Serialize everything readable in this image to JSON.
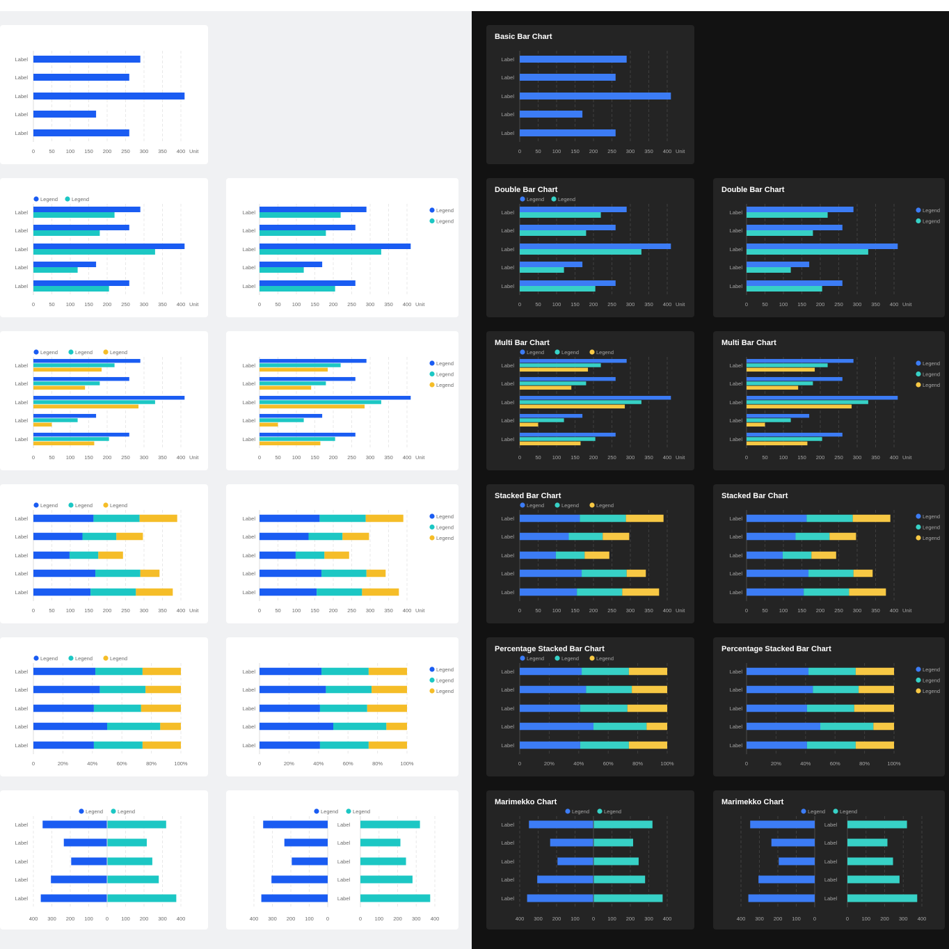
{
  "titles": {
    "basic": "Basic Bar Chart",
    "double": "Double Bar Chart",
    "multi": "Multi Bar Chart",
    "stacked": "Stacked Bar Chart",
    "percent": "Percentage Stacked Bar Chart",
    "marimekko": "Marimekko Chart"
  },
  "colors": {
    "light_page": "#f0f1f3",
    "dark_page": "#121212",
    "light_card": "#ffffff",
    "dark_card": "#242424",
    "blue_light": "#1a5cf2",
    "blue_dark": "#3c7cf5",
    "teal_light": "#1cc7c4",
    "teal_dark": "#37d1c6",
    "yellow_light": "#f5bd28",
    "yellow_dark": "#f7c844",
    "label_light": "#6b6b6b",
    "label_dark": "#a6a6a6",
    "title_dark": "#ffffff"
  },
  "legend_label": "Legend",
  "category_label": "Label",
  "unit_label": "Unit",
  "chart_data": [
    {
      "id": "basic",
      "type": "bar",
      "orientation": "horizontal",
      "layout": "grouped",
      "categories": [
        "Label",
        "Label",
        "Label",
        "Label",
        "Label"
      ],
      "series": [
        {
          "values": [
            290,
            260,
            410,
            170,
            260
          ]
        }
      ],
      "xlim": [
        0,
        400
      ],
      "xticks": [
        "0",
        "50",
        "100",
        "150",
        "200",
        "250",
        "300",
        "350",
        "400"
      ],
      "unit": "Unit",
      "legend": "none",
      "grid": true
    },
    {
      "id": "double",
      "type": "bar",
      "orientation": "horizontal",
      "layout": "grouped",
      "categories": [
        "Label",
        "Label",
        "Label",
        "Label",
        "Label"
      ],
      "series": [
        {
          "name": "Legend",
          "values": [
            290,
            260,
            410,
            170,
            260
          ]
        },
        {
          "name": "Legend",
          "values": [
            220,
            180,
            330,
            120,
            205
          ]
        }
      ],
      "xlim": [
        0,
        400
      ],
      "xticks": [
        "0",
        "50",
        "100",
        "150",
        "200",
        "250",
        "300",
        "350",
        "400"
      ],
      "unit": "Unit",
      "legend": "top",
      "legend_alt": "right",
      "grid": true
    },
    {
      "id": "multi",
      "type": "bar",
      "orientation": "horizontal",
      "layout": "grouped",
      "categories": [
        "Label",
        "Label",
        "Label",
        "Label",
        "Label"
      ],
      "series": [
        {
          "name": "Legend",
          "values": [
            290,
            260,
            410,
            170,
            260
          ]
        },
        {
          "name": "Legend",
          "values": [
            220,
            180,
            330,
            120,
            205
          ]
        },
        {
          "name": "Legend",
          "values": [
            185,
            140,
            285,
            50,
            165
          ]
        }
      ],
      "xlim": [
        0,
        400
      ],
      "xticks": [
        "0",
        "50",
        "100",
        "150",
        "200",
        "250",
        "300",
        "350",
        "400"
      ],
      "unit": "Unit",
      "legend": "top",
      "legend_alt": "right",
      "grid": true
    },
    {
      "id": "stacked",
      "type": "bar",
      "orientation": "horizontal",
      "layout": "stacked",
      "categories": [
        "Label",
        "Label",
        "Label",
        "Label",
        "Label"
      ],
      "series": [
        {
          "name": "Legend",
          "values": [
            163,
            133,
            98,
            168,
            155
          ]
        },
        {
          "name": "Legend",
          "values": [
            125,
            92,
            78,
            122,
            123
          ]
        },
        {
          "name": "Legend",
          "values": [
            102,
            72,
            67,
            52,
            100
          ]
        }
      ],
      "xlim": [
        0,
        400
      ],
      "xticks": [
        "0",
        "50",
        "100",
        "150",
        "200",
        "250",
        "300",
        "350",
        "400"
      ],
      "unit": "Unit",
      "legend": "top",
      "legend_alt": "right",
      "grid": true
    },
    {
      "id": "percent",
      "type": "bar",
      "orientation": "horizontal",
      "layout": "percent",
      "categories": [
        "Label",
        "Label",
        "Label",
        "Label",
        "Label"
      ],
      "series": [
        {
          "name": "Legend",
          "values": [
            42,
            45,
            41,
            50,
            41
          ]
        },
        {
          "name": "Legend",
          "values": [
            32,
            31,
            32,
            36,
            33
          ]
        },
        {
          "name": "Legend",
          "values": [
            26,
            24,
            27,
            14,
            26
          ]
        }
      ],
      "xlim": [
        0,
        100
      ],
      "xticks": [
        "0",
        "20%",
        "40%",
        "60%",
        "80%",
        "100%"
      ],
      "unit": "",
      "legend": "top",
      "legend_alt": "right",
      "grid": true
    },
    {
      "id": "marimekko",
      "type": "bar",
      "orientation": "horizontal",
      "layout": "diverging",
      "categories": [
        "Label",
        "Label",
        "Label",
        "Label",
        "Label"
      ],
      "series": [
        {
          "name": "Legend",
          "values": [
            350,
            235,
            195,
            305,
            360
          ]
        },
        {
          "name": "Legend",
          "values": [
            320,
            215,
            245,
            280,
            375
          ]
        }
      ],
      "xlim": [
        -400,
        400
      ],
      "xticks": [
        "400",
        "300",
        "200",
        "100",
        "0",
        "100",
        "200",
        "300",
        "400"
      ],
      "unit": "",
      "legend": "top",
      "grid": true
    }
  ]
}
